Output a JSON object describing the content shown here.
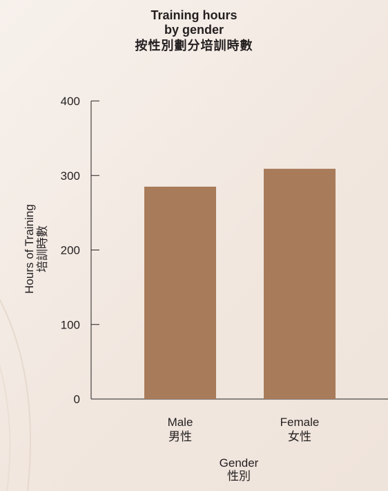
{
  "title": {
    "line1": "Training hours",
    "line2": "by gender",
    "line3": "按性別劃分培訓時數"
  },
  "chart_data": {
    "type": "bar",
    "title": "Training hours by gender 按性別劃分培訓時數",
    "categories": [
      {
        "en": "Male",
        "zh": "男性"
      },
      {
        "en": "Female",
        "zh": "女性"
      }
    ],
    "values": [
      285,
      309
    ],
    "xlabel": {
      "en": "Gender",
      "zh": "性別"
    },
    "ylabel": {
      "en": "Hours of Training",
      "zh": "培訓時數"
    },
    "ylim": [
      0,
      400
    ],
    "yticks": [
      0,
      100,
      200,
      300,
      400
    ],
    "grid": false,
    "legend": "none",
    "bar_color": "#a87b5a"
  }
}
